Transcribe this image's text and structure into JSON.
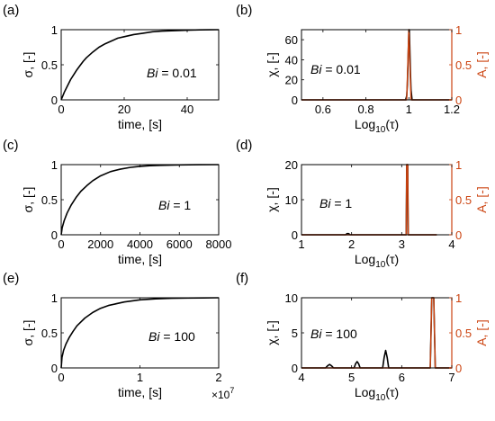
{
  "colors": {
    "primary": "#000000",
    "secondary": "#cc4411"
  },
  "chart_data": [
    {
      "panel_label": "(a)",
      "type": "line",
      "xlabel": "time, [s]",
      "ylabel": "σ, [-]",
      "annotation_var": "Bi",
      "annotation_val": " = 0.01",
      "xlim": [
        0,
        50
      ],
      "ylim": [
        0,
        1
      ],
      "xticks": [
        0,
        20,
        40
      ],
      "xtick_labels": [
        "0",
        "20",
        "40"
      ],
      "yticks": [
        0,
        0.5,
        1
      ],
      "ytick_labels": [
        "0",
        "0.5",
        "1"
      ],
      "series": [
        {
          "x": [
            0,
            1,
            2,
            3,
            4,
            5,
            6,
            7,
            8,
            10,
            12,
            14,
            16,
            18,
            20,
            23,
            26,
            29,
            32,
            35,
            38,
            41,
            44,
            47,
            50
          ],
          "y": [
            0,
            0.11,
            0.2,
            0.29,
            0.36,
            0.43,
            0.49,
            0.55,
            0.6,
            0.68,
            0.75,
            0.8,
            0.84,
            0.88,
            0.9,
            0.93,
            0.95,
            0.97,
            0.98,
            0.985,
            0.99,
            0.995,
            0.997,
            0.999,
            1.0
          ]
        }
      ]
    },
    {
      "panel_label": "(b)",
      "type": "line",
      "xlabel": "Log10(τ)",
      "ylabel": "χ, [-]",
      "ylabel_right": "A, [-]",
      "annotation_var": "Bi",
      "annotation_val": " = 0.01",
      "xlim": [
        0.5,
        1.2
      ],
      "ylim": [
        0,
        70
      ],
      "ylim_right": [
        0,
        1
      ],
      "xticks": [
        0.6,
        0.8,
        1,
        1.2
      ],
      "xtick_labels": [
        "0.6",
        "0.8",
        "1",
        "1.2"
      ],
      "yticks": [
        0,
        20,
        40,
        60
      ],
      "ytick_labels": [
        "0",
        "20",
        "40",
        "60"
      ],
      "yticks_right": [
        0,
        0.5,
        1
      ],
      "ytick_labels_right": [
        "0",
        "0.5",
        "1"
      ],
      "series": [
        {
          "axis": "left",
          "x": [
            0.5,
            0.985,
            0.99,
            0.993,
            0.996,
            0.998,
            1.0,
            1.002,
            1.004,
            1.007,
            1.01,
            1.015,
            1.2
          ],
          "y": [
            0,
            0,
            4,
            15,
            35,
            55,
            70,
            70,
            55,
            30,
            10,
            0,
            0
          ]
        },
        {
          "axis": "right",
          "x": [
            0.5,
            0.99,
            0.999,
            1.0,
            1.001,
            1.01,
            1.2
          ],
          "y": [
            0,
            0,
            0.9,
            1.0,
            0.9,
            0,
            0
          ]
        }
      ]
    },
    {
      "panel_label": "(c)",
      "type": "line",
      "xlabel": "time, [s]",
      "ylabel": "σ, [-]",
      "annotation_var": "Bi",
      "annotation_val": " = 1",
      "xlim": [
        0,
        8000
      ],
      "ylim": [
        0,
        1
      ],
      "xticks": [
        0,
        2000,
        4000,
        6000,
        8000
      ],
      "xtick_labels": [
        "0",
        "2000",
        "4000",
        "6000",
        "8000"
      ],
      "yticks": [
        0,
        0.5,
        1
      ],
      "ytick_labels": [
        "0",
        "0.5",
        "1"
      ],
      "series": [
        {
          "x": [
            0,
            50,
            150,
            300,
            500,
            750,
            1000,
            1300,
            1600,
            2000,
            2500,
            3000,
            3500,
            4000,
            4500,
            5000,
            6000,
            7000,
            8000
          ],
          "y": [
            0,
            0.1,
            0.2,
            0.31,
            0.42,
            0.53,
            0.62,
            0.7,
            0.77,
            0.84,
            0.9,
            0.935,
            0.96,
            0.975,
            0.985,
            0.99,
            0.996,
            0.999,
            1.0
          ]
        }
      ]
    },
    {
      "panel_label": "(d)",
      "type": "line",
      "xlabel": "Log10(τ)",
      "ylabel": "χ, [-]",
      "ylabel_right": "A, [-]",
      "annotation_var": "Bi",
      "annotation_val": " = 1",
      "xlim": [
        1,
        4
      ],
      "ylim": [
        0,
        20
      ],
      "ylim_right": [
        0,
        1
      ],
      "xticks": [
        1,
        2,
        3,
        4
      ],
      "xtick_labels": [
        "1",
        "2",
        "3",
        "4"
      ],
      "yticks": [
        0,
        10,
        20
      ],
      "ytick_labels": [
        "0",
        "10",
        "20"
      ],
      "yticks_right": [
        0,
        0.5,
        1
      ],
      "ytick_labels_right": [
        "0",
        "0.5",
        "1"
      ],
      "series": [
        {
          "axis": "left",
          "x": [
            1,
            1.88,
            1.91,
            1.94,
            1.97,
            3.09,
            3.1,
            3.11,
            3.12,
            3.13,
            3.7
          ],
          "y": [
            0,
            0,
            0.35,
            0.35,
            0,
            0,
            20,
            20,
            20,
            0,
            0
          ]
        },
        {
          "axis": "right",
          "x": [
            1,
            3.09,
            3.1,
            3.11,
            3.12,
            3.13,
            3.7
          ],
          "y": [
            0,
            0,
            1.0,
            1.0,
            1.0,
            0,
            0
          ]
        }
      ]
    },
    {
      "panel_label": "(e)",
      "type": "line",
      "xlabel": "time, [s]",
      "ylabel": "σ, [-]",
      "annotation_var": "Bi",
      "annotation_val": " = 100",
      "xlim": [
        0,
        2
      ],
      "ylim": [
        0,
        1
      ],
      "xticks": [
        0,
        1,
        2
      ],
      "xtick_labels": [
        "0",
        "1",
        "2"
      ],
      "x_exponent_base": "×10",
      "x_exponent_power": "7",
      "yticks": [
        0,
        0.5,
        1
      ],
      "ytick_labels": [
        "0",
        "0.5",
        "1"
      ],
      "series": [
        {
          "x": [
            0,
            0.01,
            0.03,
            0.06,
            0.1,
            0.15,
            0.2,
            0.3,
            0.4,
            0.5,
            0.6,
            0.8,
            1.0,
            1.2,
            1.4,
            1.6,
            1.8,
            2.0
          ],
          "y": [
            0,
            0.15,
            0.25,
            0.34,
            0.43,
            0.52,
            0.6,
            0.71,
            0.79,
            0.85,
            0.89,
            0.94,
            0.97,
            0.985,
            0.992,
            0.996,
            0.998,
            1.0
          ]
        }
      ]
    },
    {
      "panel_label": "(f)",
      "type": "line",
      "xlabel": "Log10(τ)",
      "ylabel": "χ, [-]",
      "ylabel_right": "A, [-]",
      "annotation_var": "Bi",
      "annotation_val": " = 100",
      "xlim": [
        4,
        7
      ],
      "ylim": [
        0,
        10
      ],
      "ylim_right": [
        0,
        1
      ],
      "xticks": [
        4,
        5,
        6,
        7
      ],
      "xtick_labels": [
        "4",
        "5",
        "6",
        "7"
      ],
      "yticks": [
        0,
        5,
        10
      ],
      "ytick_labels": [
        "0",
        "5",
        "10"
      ],
      "yticks_right": [
        0,
        0.5,
        1
      ],
      "ytick_labels_right": [
        "0",
        "0.5",
        "1"
      ],
      "series": [
        {
          "axis": "left",
          "x": [
            4,
            4.48,
            4.52,
            4.56,
            4.6,
            4.64,
            5.05,
            5.08,
            5.11,
            5.14,
            5.17,
            5.62,
            5.65,
            5.68,
            5.71,
            5.74,
            6.57,
            6.6,
            6.62,
            6.64,
            6.67,
            7
          ],
          "y": [
            0,
            0,
            0.3,
            0.5,
            0.3,
            0,
            0,
            0.6,
            0.9,
            0.6,
            0,
            0,
            1.5,
            2.5,
            1.5,
            0,
            0,
            10,
            10,
            10,
            0,
            0
          ]
        },
        {
          "axis": "right",
          "x": [
            4,
            6.57,
            6.6,
            6.62,
            6.64,
            6.67,
            7
          ],
          "y": [
            0,
            0,
            1.0,
            1.0,
            1.0,
            0,
            0
          ]
        }
      ]
    }
  ]
}
